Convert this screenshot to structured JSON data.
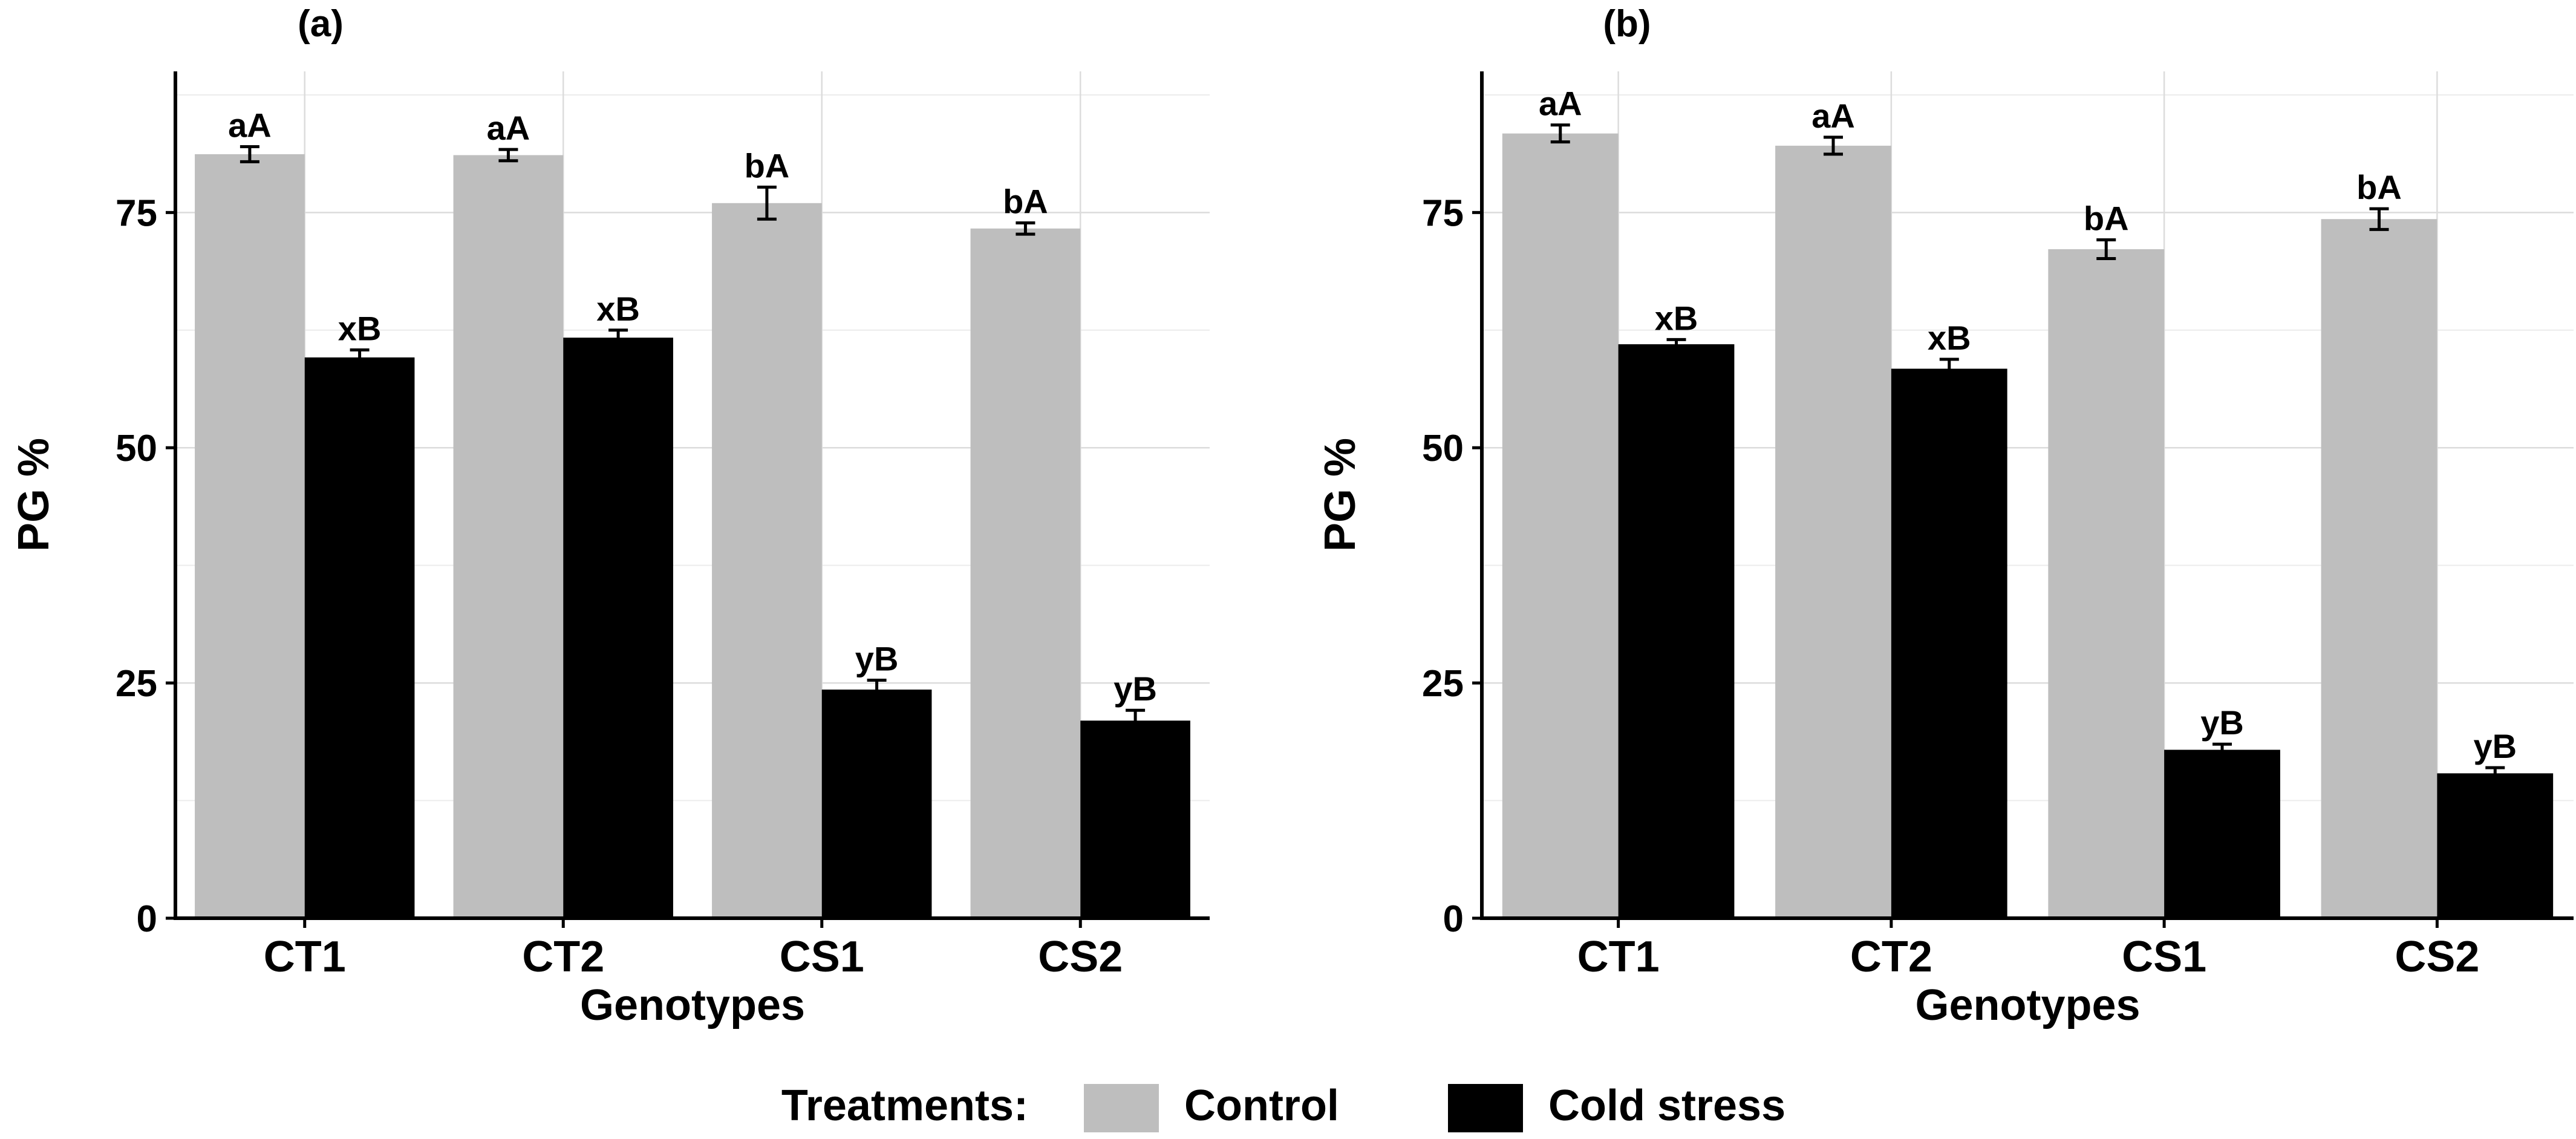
{
  "chart_data": [
    {
      "type": "bar",
      "title": "(a)",
      "xlabel": "Genotypes",
      "ylabel": "PG %",
      "ylim": [
        0,
        90
      ],
      "yticks": [
        0,
        25,
        50,
        75
      ],
      "grid": true,
      "categories": [
        "CT1",
        "CT2",
        "CS1",
        "CS2"
      ],
      "series": [
        {
          "name": "Control",
          "color": "#bebebe",
          "values": [
            81.2,
            81.1,
            76.0,
            73.3
          ],
          "errors": [
            0.8,
            0.6,
            1.7,
            0.6
          ],
          "labels": [
            "aA",
            "aA",
            "bA",
            "bA"
          ]
        },
        {
          "name": "Cold stress",
          "color": "#000000",
          "values": [
            59.6,
            61.7,
            24.3,
            21.0
          ],
          "errors": [
            0.8,
            0.8,
            1.0,
            1.1
          ],
          "labels": [
            "xB",
            "xB",
            "yB",
            "yB"
          ]
        }
      ]
    },
    {
      "type": "bar",
      "title": "(b)",
      "xlabel": "Genotypes",
      "ylabel": "PG %",
      "ylim": [
        0,
        90
      ],
      "yticks": [
        0,
        25,
        50,
        75
      ],
      "grid": true,
      "categories": [
        "CT1",
        "CT2",
        "CS1",
        "CS2"
      ],
      "series": [
        {
          "name": "Control",
          "color": "#bebebe",
          "values": [
            83.4,
            82.1,
            71.1,
            74.3
          ],
          "errors": [
            0.9,
            0.9,
            1.0,
            1.1
          ],
          "labels": [
            "aA",
            "aA",
            "bA",
            "bA"
          ]
        },
        {
          "name": "Cold stress",
          "color": "#000000",
          "values": [
            61.0,
            58.4,
            17.9,
            15.4
          ],
          "errors": [
            0.5,
            1.0,
            0.6,
            0.6
          ],
          "labels": [
            "xB",
            "xB",
            "yB",
            "yB"
          ]
        }
      ]
    }
  ],
  "legend": {
    "title": "Treatments:",
    "placement": "bottom",
    "items": [
      {
        "label": "Control",
        "color": "#bebebe"
      },
      {
        "label": "Cold stress",
        "color": "#000000"
      }
    ]
  }
}
